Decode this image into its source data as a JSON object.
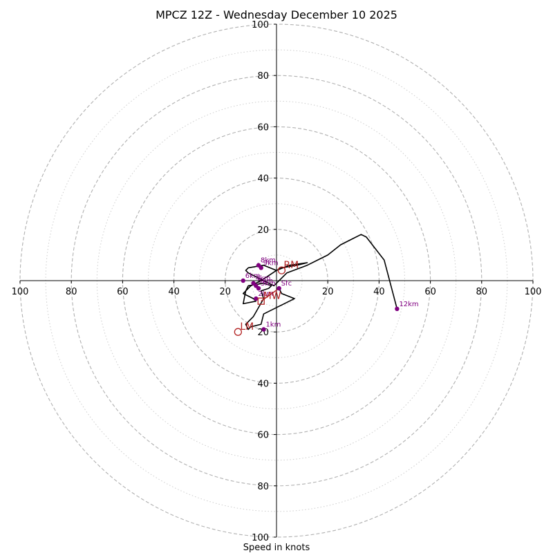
{
  "chart_data": {
    "type": "line",
    "title": "MPCZ 12Z - Wednesday December 10 2025",
    "xlabel": "Speed in knots",
    "unit": "knots",
    "range": 100,
    "dashed_rings": [
      20,
      40,
      60,
      80,
      100
    ],
    "dotted_rings": [
      10,
      30,
      50,
      70,
      90
    ],
    "ticks_x": [
      "100",
      "80",
      "60",
      "40",
      "20",
      "20",
      "40",
      "60",
      "80",
      "100"
    ],
    "ticks_x_values": [
      -100,
      -80,
      -60,
      -40,
      -20,
      20,
      40,
      60,
      80,
      100
    ],
    "ticks_y": [
      "100",
      "80",
      "60",
      "40",
      "20",
      "20",
      "40",
      "60",
      "80",
      "100"
    ],
    "ticks_y_values": [
      100,
      80,
      60,
      40,
      20,
      -20,
      -40,
      -60,
      -80,
      -100
    ],
    "hodograph": {
      "u": [
        1,
        2,
        7,
        5,
        -5,
        -6,
        -10,
        -11,
        -12,
        -9,
        -5,
        -6,
        -3,
        -2,
        -5,
        -11,
        -12,
        -13,
        -8,
        -9,
        -13,
        -10,
        -6,
        -3,
        0,
        5,
        12,
        8,
        2,
        0,
        -5,
        -11,
        -12,
        -11,
        -5,
        -1,
        4,
        12,
        20,
        25,
        33,
        35,
        42,
        47
      ],
      "v": [
        -3,
        -5,
        -7,
        -8,
        -13,
        -17,
        -18,
        -19,
        -17,
        -14,
        -7,
        -4,
        -3,
        -2,
        -1,
        -2,
        -4,
        -9,
        -8,
        -7,
        -5,
        -2,
        0,
        2,
        4,
        6,
        7,
        6,
        5,
        4,
        6,
        5,
        4,
        3,
        0,
        -2,
        3,
        6,
        10,
        14,
        18,
        17,
        8,
        -11
      ]
    },
    "levels": [
      {
        "label": "Sfc",
        "u": 1,
        "v": -3
      },
      {
        "label": "1km",
        "u": -5,
        "v": -19
      },
      {
        "label": "2km",
        "u": -8,
        "v": -7
      },
      {
        "label": "3km",
        "u": -7,
        "v": -3
      },
      {
        "label": "4km",
        "u": -9,
        "v": -1
      },
      {
        "label": "5km",
        "u": -8,
        "v": -2
      },
      {
        "label": "6km",
        "u": -13,
        "v": 0
      },
      {
        "label": "8km",
        "u": -7,
        "v": 6
      },
      {
        "label": "9km",
        "u": -6,
        "v": 5
      },
      {
        "label": "12km",
        "u": 47,
        "v": -11
      }
    ],
    "motions": [
      {
        "label": "RM",
        "u": 2,
        "v": 4,
        "marker": "circle"
      },
      {
        "label": "LM",
        "u": -15,
        "v": -20,
        "marker": "circle"
      },
      {
        "label": "MW",
        "u": -6,
        "v": -8,
        "marker": "square"
      }
    ],
    "shear_vector": {
      "from_u": 1,
      "from_v": -3,
      "to_u": -6,
      "to_v": -8
    },
    "colors": {
      "hodograph": "#000000",
      "levels": "#800080",
      "motion": "#b22222",
      "grid": "#b0b0b0",
      "axes": "#000000"
    }
  }
}
